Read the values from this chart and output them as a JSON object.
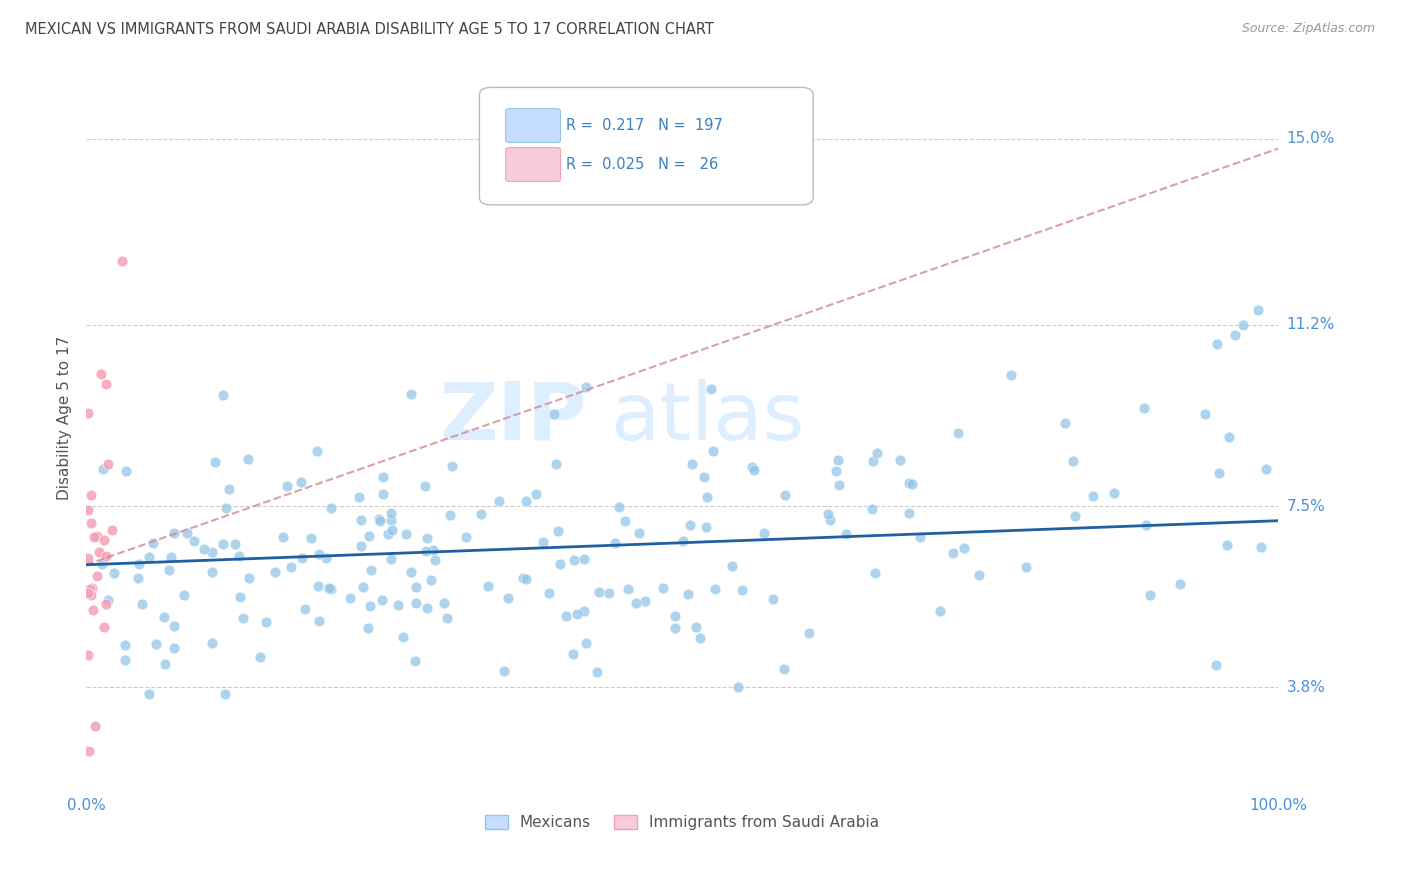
{
  "title": "MEXICAN VS IMMIGRANTS FROM SAUDI ARABIA DISABILITY AGE 5 TO 17 CORRELATION CHART",
  "source": "Source: ZipAtlas.com",
  "ylabel": "Disability Age 5 to 17",
  "ytick_labels": [
    "3.8%",
    "7.5%",
    "11.2%",
    "15.0%"
  ],
  "ytick_values": [
    0.038,
    0.075,
    0.112,
    0.15
  ],
  "xlim": [
    0.0,
    1.0
  ],
  "ylim": [
    0.018,
    0.168
  ],
  "blue_line_y_start": 0.063,
  "blue_line_y_end": 0.072,
  "pink_line_y_start": 0.063,
  "pink_line_y_end": 0.148,
  "scatter_size": 60,
  "blue_color": "#92C5E8",
  "pink_color": "#F4A0B5",
  "blue_line_color": "#2060A0",
  "pink_line_color": "#D08898",
  "grid_color": "#cccccc",
  "axis_label_color": "#4a90d9",
  "watermark_color": "#ddeeff",
  "background_color": "#ffffff",
  "title_color": "#444444",
  "source_color": "#999999",
  "ylabel_color": "#555555"
}
